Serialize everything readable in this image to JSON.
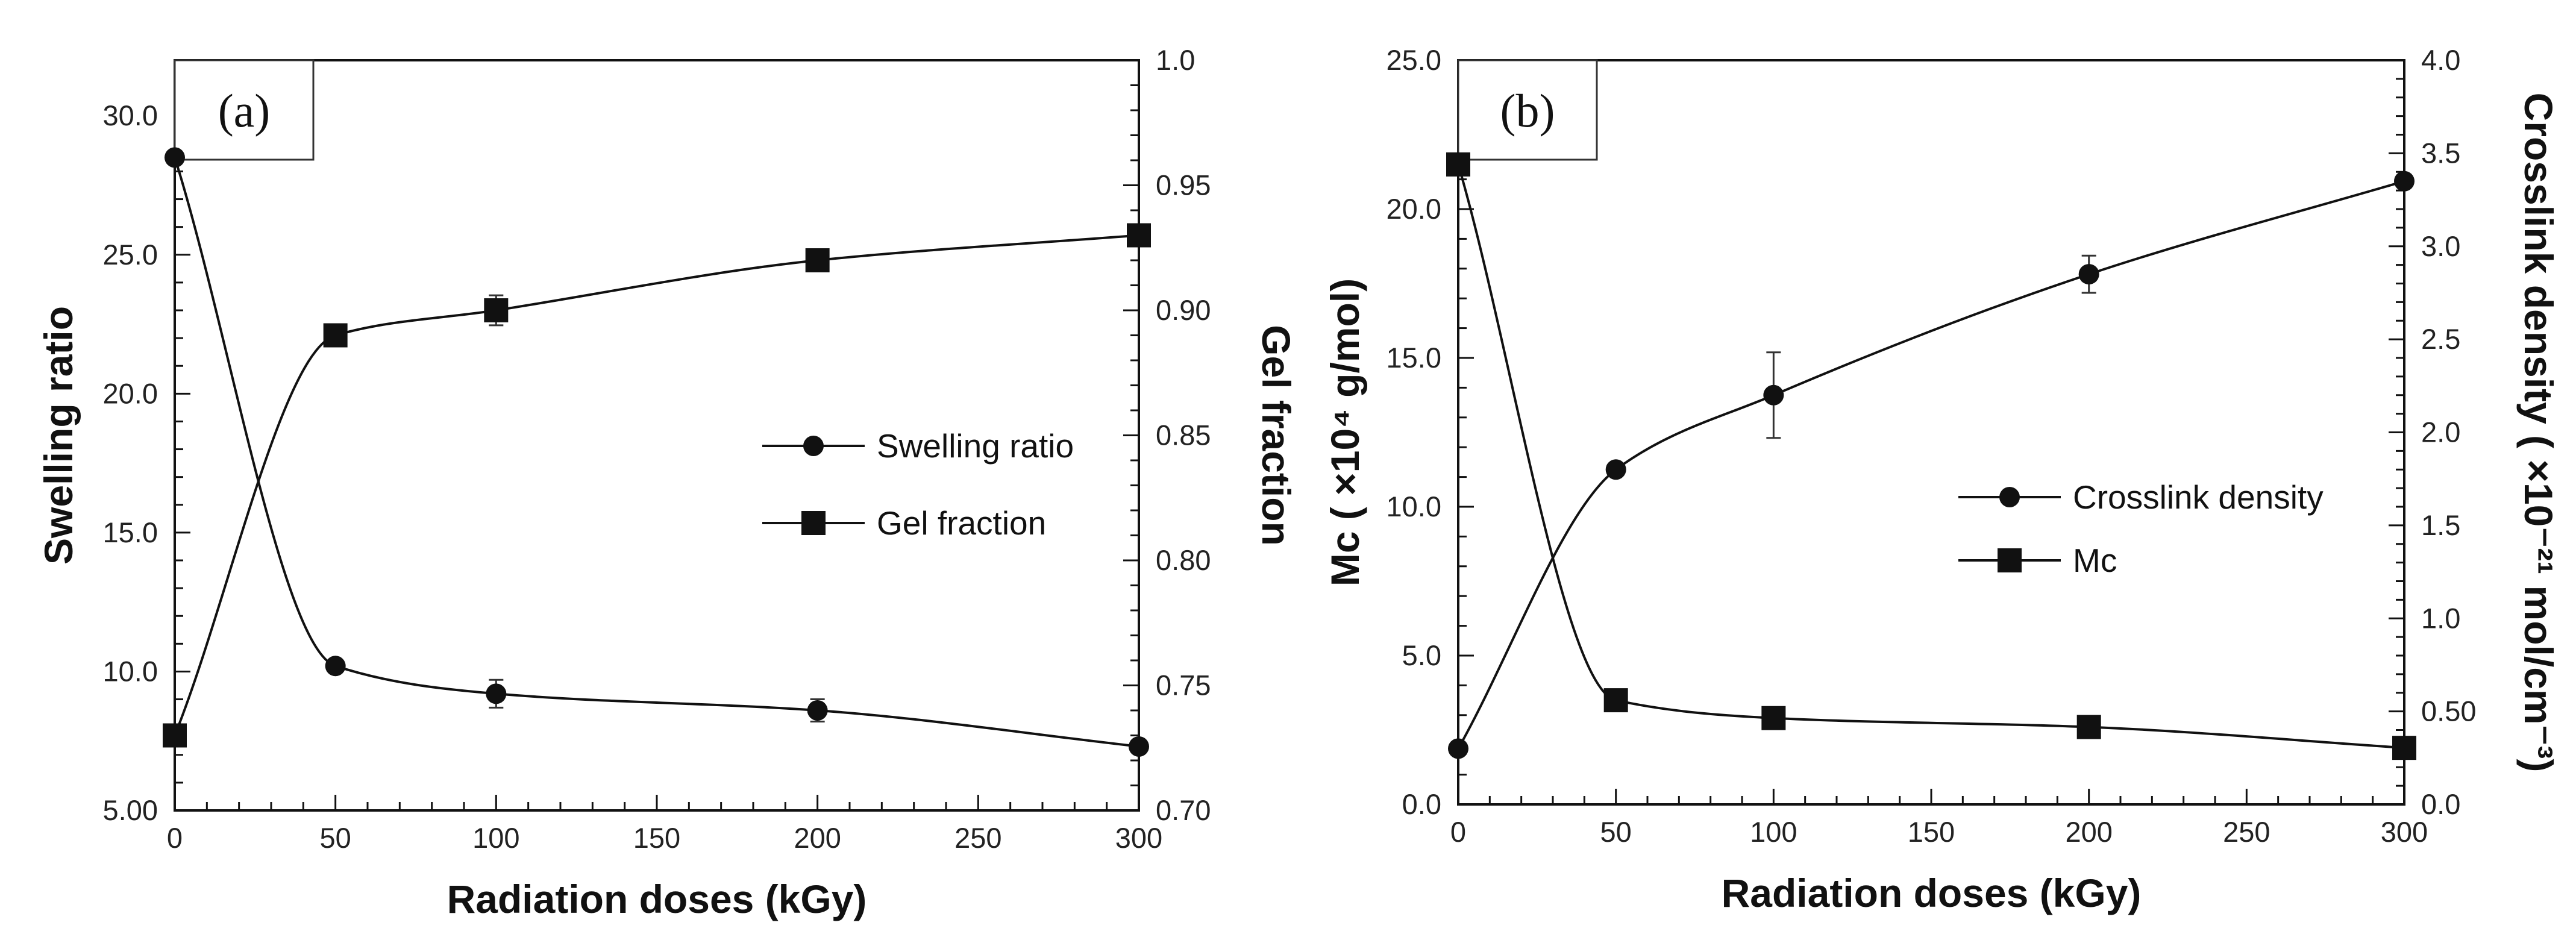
{
  "chart_data": [
    {
      "type": "line",
      "panel_label": "(a)",
      "xlabel": "Radiation doses (kGy)",
      "ylabel": "Swelling ratio",
      "y2label": "Gel fraction",
      "xlim": [
        0,
        300
      ],
      "ylim": [
        5,
        32
      ],
      "y2lim": [
        0.7,
        1.0
      ],
      "x_ticks": [
        0,
        50,
        100,
        150,
        200,
        250,
        300
      ],
      "x_tick_labels": [
        "0",
        "50",
        "100",
        "150",
        "200",
        "250",
        "300"
      ],
      "y_ticks": [
        5,
        10,
        15,
        20,
        25,
        30
      ],
      "y_tick_labels": [
        "5.00",
        "10.0",
        "15.0",
        "20.0",
        "25.0",
        "30.0"
      ],
      "y2_ticks": [
        0.7,
        0.75,
        0.8,
        0.85,
        0.9,
        0.95,
        1.0
      ],
      "y2_tick_labels": [
        "0.70",
        "0.75",
        "0.80",
        "0.85",
        "0.90",
        "0.95",
        "1.0"
      ],
      "legend_position": "center-right",
      "series": [
        {
          "name": "Swelling ratio",
          "marker": "circle",
          "axis": "left",
          "x": [
            0,
            50,
            100,
            200,
            300
          ],
          "y": [
            28.5,
            10.2,
            9.2,
            8.6,
            7.3
          ],
          "err": [
            0,
            0,
            0.5,
            0.4,
            0
          ]
        },
        {
          "name": "Gel fraction",
          "marker": "square",
          "axis": "right",
          "x": [
            0,
            50,
            100,
            200,
            300
          ],
          "y": [
            0.73,
            0.89,
            0.9,
            0.92,
            0.93
          ],
          "err": [
            0,
            0,
            0.006,
            0,
            0
          ]
        }
      ]
    },
    {
      "type": "line",
      "panel_label": "(b)",
      "xlabel": "Radiation doses (kGy)",
      "ylabel": "Mc ( ×10⁴ g/mol)",
      "y2label": "Crosslink density ( ×10⁻²¹ mol/cm⁻³)",
      "xlim": [
        0,
        300
      ],
      "ylim": [
        0,
        25
      ],
      "y2lim": [
        0,
        4.0
      ],
      "x_ticks": [
        0,
        50,
        100,
        150,
        200,
        250,
        300
      ],
      "x_tick_labels": [
        "0",
        "50",
        "100",
        "150",
        "200",
        "250",
        "300"
      ],
      "y_ticks": [
        0,
        5,
        10,
        15,
        20,
        25
      ],
      "y_tick_labels": [
        "0.0",
        "5.0",
        "10.0",
        "15.0",
        "20.0",
        "25.0"
      ],
      "y2_ticks": [
        0,
        0.5,
        1.0,
        1.5,
        2.0,
        2.5,
        3.0,
        3.5,
        4.0
      ],
      "y2_tick_labels": [
        "0.0",
        "0.50",
        "1.0",
        "1.5",
        "2.0",
        "2.5",
        "3.0",
        "3.5",
        "4.0"
      ],
      "legend_position": "center-right",
      "series": [
        {
          "name": "Crosslink density",
          "marker": "circle",
          "axis": "right",
          "x": [
            0,
            50,
            100,
            200,
            300
          ],
          "y": [
            0.3,
            1.8,
            2.2,
            2.85,
            3.35
          ],
          "err": [
            0,
            0,
            0.23,
            0.1,
            0
          ]
        },
        {
          "name": "Mc",
          "marker": "square",
          "axis": "left",
          "x": [
            0,
            50,
            100,
            200,
            300
          ],
          "y": [
            21.5,
            3.5,
            2.9,
            2.6,
            1.9
          ],
          "err": [
            0,
            0,
            0,
            0,
            0
          ]
        }
      ]
    }
  ]
}
